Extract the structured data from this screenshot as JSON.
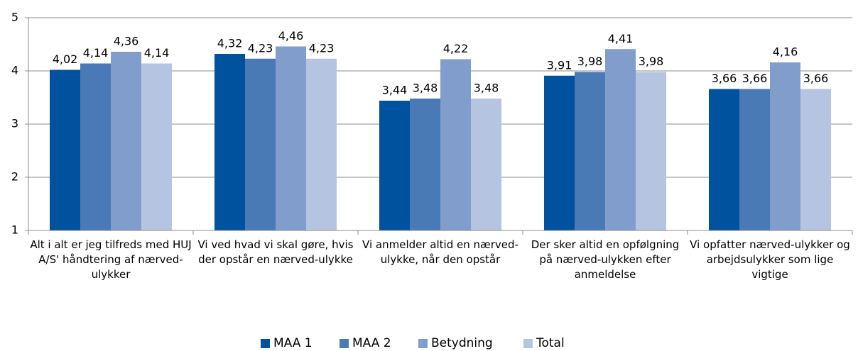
{
  "chart_data": {
    "type": "bar",
    "categories": [
      "Alt i alt er jeg tilfreds med HUJ A/S' håndtering af nærved-ulykker",
      "Vi ved hvad vi skal gøre, hvis der opstår en nærved-ulykke",
      "Vi anmelder altid en nærved-ulykke, når den opstår",
      "Der sker altid en opfølgning på nærved-ulykken efter anmeldelse",
      "Vi opfatter nærved-ulykker og arbejdsulykker som lige vigtige"
    ],
    "series": [
      {
        "name": "MAA 1",
        "color": "#00519e",
        "values": [
          4.02,
          4.32,
          3.44,
          3.91,
          3.66
        ],
        "value_labels": [
          "4,02",
          "4,32",
          "3,44",
          "3,91",
          "3,66"
        ]
      },
      {
        "name": "MAA 2",
        "color": "#4a7ab6",
        "values": [
          4.14,
          4.23,
          3.48,
          3.98,
          3.66
        ],
        "value_labels": [
          "4,14",
          "4,23",
          "3,48",
          "3,98",
          "3,66"
        ]
      },
      {
        "name": "Betydning",
        "color": "#809dcb",
        "values": [
          4.36,
          4.46,
          4.22,
          4.41,
          4.16
        ],
        "value_labels": [
          "4,36",
          "4,46",
          "4,22",
          "4,41",
          "4,16"
        ]
      },
      {
        "name": "Total",
        "color": "#b5c5e1",
        "values": [
          4.14,
          4.23,
          3.48,
          3.98,
          3.66
        ],
        "value_labels": [
          "4,14",
          "4,23",
          "3,48",
          "3,98",
          "3,66"
        ]
      }
    ],
    "ylim": [
      1,
      5
    ],
    "yticks": [
      1,
      2,
      3,
      4,
      5
    ],
    "grid": true,
    "legend": "bottom"
  }
}
